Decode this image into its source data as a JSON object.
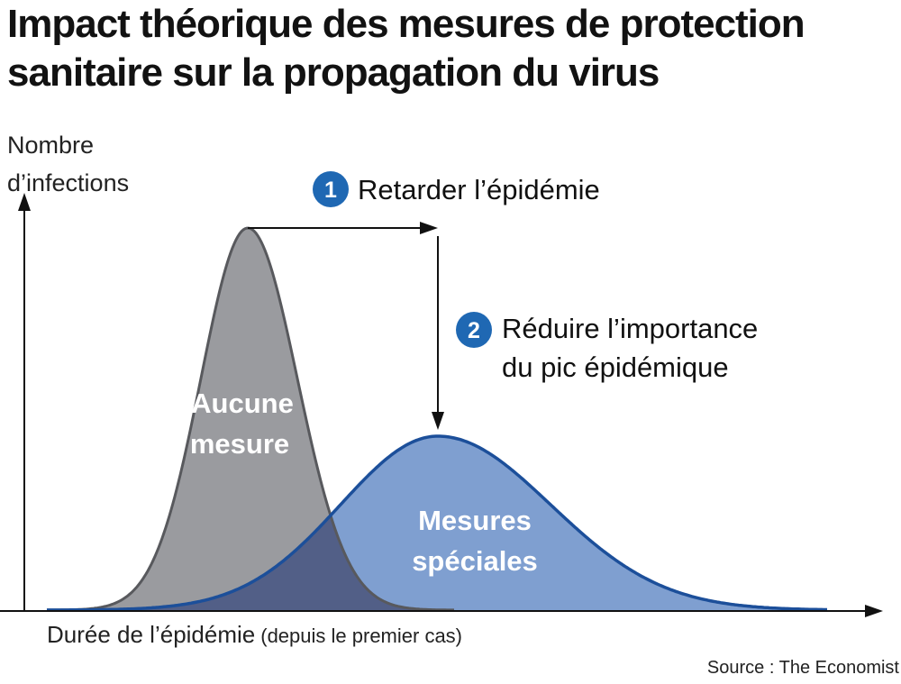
{
  "title": {
    "line1": "Impact théorique des mesures de protection",
    "line2": "sanitaire sur la propagation du virus"
  },
  "axis": {
    "y_label_line1": "Nombre",
    "y_label_line2": "d’infections",
    "x_label": "Durée de l’épidémie",
    "x_label_note": "(depuis le premier cas)"
  },
  "steps": [
    {
      "number": "1",
      "text_line1": "Retarder l’épidémie",
      "text_line2": ""
    },
    {
      "number": "2",
      "text_line1": "Réduire l’importance",
      "text_line2": "du pic épidémique"
    }
  ],
  "curves": {
    "no_measures": {
      "label_line1": "Aucune",
      "label_line2": "mesure"
    },
    "special_measures": {
      "label_line1": "Mesures",
      "label_line2": "spéciales"
    }
  },
  "source": "Source : The Economist",
  "colors": {
    "grey_fill": "#9a9b9f",
    "grey_stroke": "#58595d",
    "blue_fill": "#7f9fd0",
    "blue_stroke": "#1c4f9a",
    "overlap_fill": "#525f87",
    "badge": "#1f68b3",
    "axis": "#111111"
  }
}
